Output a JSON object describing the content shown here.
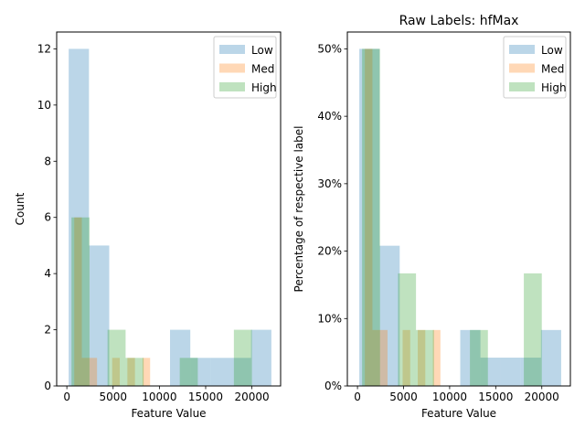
{
  "colors": {
    "Low": "#1f77b4",
    "Med": "#ff7f0e",
    "High": "#2ca02c"
  },
  "chart_data": [
    {
      "type": "histogram",
      "title": "",
      "xlabel": "Feature Value",
      "ylabel": "Count",
      "xlim": [
        -1100,
        23100
      ],
      "ylim": [
        0,
        12.6
      ],
      "xticks": [
        0,
        5000,
        10000,
        15000,
        20000
      ],
      "xtick_labels": [
        "0",
        "5000",
        "10000",
        "15000",
        "20000"
      ],
      "yticks": [
        0,
        2,
        4,
        6,
        8,
        10,
        12
      ],
      "ytick_labels": [
        "0",
        "2",
        "4",
        "6",
        "8",
        "10",
        "12"
      ],
      "legend": {
        "placement": "top-right",
        "entries": [
          "Low",
          "Med",
          "High"
        ]
      },
      "series": [
        {
          "name": "Low",
          "bin_edges": [
            200,
            2390,
            4580,
            6770,
            8960,
            11150,
            13340,
            15530,
            17720,
            19910,
            22100
          ],
          "values": [
            12,
            5,
            0,
            0,
            0,
            2,
            1,
            1,
            1,
            2
          ]
        },
        {
          "name": "Med",
          "bin_edges": [
            800,
            1620,
            2440,
            3260,
            4080,
            4900,
            5720,
            6540,
            7360,
            8180,
            9000
          ],
          "values": [
            6,
            1,
            1,
            0,
            0,
            1,
            0,
            1,
            0,
            1
          ]
        },
        {
          "name": "High",
          "bin_edges": [
            500,
            2450,
            4400,
            6350,
            8300,
            10250,
            12200,
            14150,
            16100,
            18050,
            20000
          ],
          "values": [
            6,
            0,
            2,
            1,
            0,
            0,
            1,
            0,
            0,
            2
          ]
        }
      ]
    },
    {
      "type": "histogram",
      "title": "Raw Labels: hfMax",
      "xlabel": "Feature Value",
      "ylabel": "Percentage of respective label",
      "xlim": [
        -1100,
        23100
      ],
      "ylim": [
        0,
        52.5
      ],
      "xticks": [
        0,
        5000,
        10000,
        15000,
        20000
      ],
      "xtick_labels": [
        "0",
        "5000",
        "10000",
        "15000",
        "20000"
      ],
      "yticks": [
        0,
        10,
        20,
        30,
        40,
        50
      ],
      "ytick_labels": [
        "0%",
        "10%",
        "20%",
        "30%",
        "40%",
        "50%"
      ],
      "legend": {
        "placement": "top-right",
        "entries": [
          "Low",
          "Med",
          "High"
        ]
      },
      "series": [
        {
          "name": "Low",
          "bin_edges": [
            200,
            2390,
            4580,
            6770,
            8960,
            11150,
            13340,
            15530,
            17720,
            19910,
            22100
          ],
          "values": [
            50,
            20.8,
            0,
            0,
            0,
            8.3,
            4.2,
            4.2,
            4.2,
            8.3
          ]
        },
        {
          "name": "Med",
          "bin_edges": [
            800,
            1620,
            2440,
            3260,
            4080,
            4900,
            5720,
            6540,
            7360,
            8180,
            9000
          ],
          "values": [
            50,
            8.3,
            8.3,
            0,
            0,
            8.3,
            0,
            8.3,
            0,
            8.3
          ]
        },
        {
          "name": "High",
          "bin_edges": [
            500,
            2450,
            4400,
            6350,
            8300,
            10250,
            12200,
            14150,
            16100,
            18050,
            20000
          ],
          "values": [
            50,
            0,
            16.7,
            8.3,
            0,
            0,
            8.3,
            0,
            0,
            16.7
          ]
        }
      ]
    }
  ]
}
